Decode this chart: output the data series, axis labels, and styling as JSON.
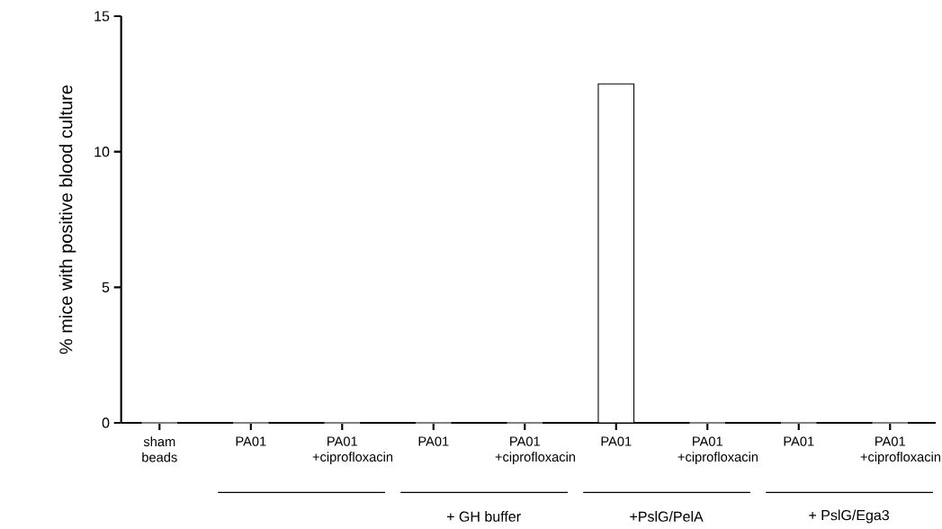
{
  "chart_data": {
    "type": "bar",
    "ylabel": "% mice with positive blood culture",
    "categories": [
      "sham beads",
      "PA01",
      "PA01 +ciprofloxacin",
      "PA01",
      "PA01 +ciprofloxacin",
      "PA01",
      "PA01 +ciprofloxacin",
      "PA01",
      "PA01 +ciprofloxacin"
    ],
    "values": [
      0,
      0,
      0,
      0,
      0,
      12.5,
      0,
      0,
      0
    ],
    "color": "#ffffff",
    "ylim": [
      0,
      15
    ],
    "yticks": [
      0,
      5,
      10,
      15
    ],
    "grid": false,
    "annotations": [
      "+ GH buffer",
      "+PslG/PelA",
      "+ PslG/Ega3"
    ]
  }
}
